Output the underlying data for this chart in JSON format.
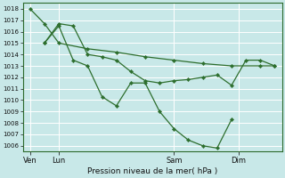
{
  "background_color": "#c8e8e8",
  "grid_color": "#ffffff",
  "line_color": "#2d6e2d",
  "ylim": [
    1005.5,
    1018.5
  ],
  "yticks": [
    1006,
    1007,
    1008,
    1009,
    1010,
    1011,
    1012,
    1013,
    1014,
    1015,
    1016,
    1017,
    1018
  ],
  "xlabel": "Pression niveau de la mer( hPa )",
  "xtick_labels": [
    "Ven",
    "Lun",
    "Sam",
    "Dim"
  ],
  "xtick_positions": [
    0.5,
    2.5,
    10.5,
    15.0
  ],
  "xlim": [
    0.0,
    18.0
  ],
  "series": [
    {
      "x": [
        0.5,
        1.5,
        2.5,
        4.5,
        6.5,
        8.5,
        10.5,
        12.5,
        14.5,
        16.5,
        17.5
      ],
      "y": [
        1018.0,
        1016.7,
        1015.0,
        1014.5,
        1014.2,
        1013.8,
        1013.5,
        1013.2,
        1013.0,
        1013.0,
        1013.0
      ]
    },
    {
      "x": [
        1.5,
        2.5,
        3.5,
        4.5,
        5.5,
        6.5,
        7.5,
        8.5,
        9.5,
        10.5,
        11.5,
        12.5,
        13.5,
        14.5,
        15.5,
        16.5,
        17.5
      ],
      "y": [
        1015.0,
        1016.7,
        1016.5,
        1014.0,
        1013.8,
        1013.5,
        1012.5,
        1011.7,
        1011.5,
        1011.7,
        1011.8,
        1012.0,
        1012.2,
        1011.3,
        1013.5,
        1013.5,
        1013.0
      ]
    },
    {
      "x": [
        1.5,
        2.5,
        3.5,
        4.5,
        5.5,
        6.5,
        7.5,
        8.5,
        9.5,
        10.5,
        11.5,
        12.5,
        13.5,
        14.5
      ],
      "y": [
        1015.0,
        1016.5,
        1013.5,
        1013.0,
        1010.3,
        1009.5,
        1011.5,
        1011.5,
        1009.0,
        1007.5,
        1006.5,
        1006.0,
        1005.8,
        1008.3
      ]
    }
  ]
}
